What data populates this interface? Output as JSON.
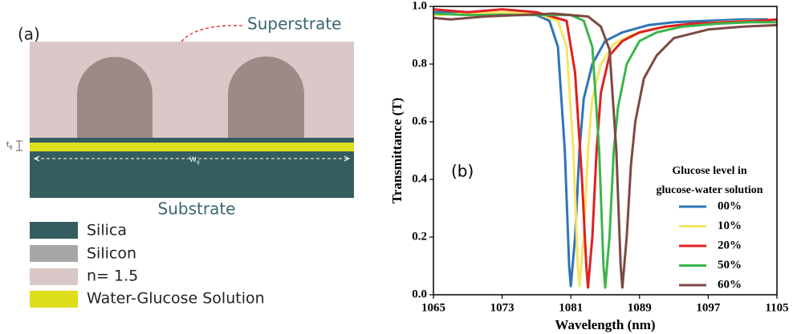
{
  "diagram": {
    "panel_label": "(a)",
    "superstrate": "Superstrate",
    "substrate": "Substrate",
    "thickness_label": {
      "main": "t",
      "sub": "g"
    },
    "width_label": {
      "main": "W",
      "sub": "g"
    },
    "legend": [
      "Silica",
      "Silicon",
      "n= 1.5",
      "Water-Glucose Solution"
    ]
  },
  "chart_data": {
    "type": "line",
    "panel_label": "(b)",
    "x_label": "Wavelength (nm)",
    "y_label": "Transmittance (T)",
    "legend_title": [
      "Glucose level in",
      "glucose-water solution"
    ],
    "xlim": [
      1065,
      1105
    ],
    "xticks": [
      1065,
      1073,
      1081,
      1089,
      1097,
      1105
    ],
    "ylim": [
      0,
      1
    ],
    "yticks": [
      {
        "value": 0,
        "label": "0.0"
      },
      0.2,
      0.4,
      0.6,
      0.8,
      {
        "value": 1,
        "label": "1.0"
      }
    ],
    "series": [
      {
        "name": "00%",
        "color": "#2e75b6",
        "x": [
          1065,
          1069,
          1073,
          1077,
          1078.5,
          1079.5,
          1080.3,
          1080.8,
          1081,
          1081.5,
          1082,
          1082.5,
          1083.5,
          1085,
          1087,
          1090,
          1093,
          1097,
          1101,
          1104
        ],
        "values": [
          0.98,
          0.98,
          0.975,
          0.97,
          0.95,
          0.86,
          0.5,
          0.1,
          0.03,
          0.2,
          0.5,
          0.68,
          0.8,
          0.88,
          0.91,
          0.935,
          0.945,
          0.95,
          0.955,
          0.955
        ]
      },
      {
        "name": "10%",
        "color": "#f5e663",
        "x": [
          1065,
          1069,
          1073,
          1077,
          1079.5,
          1080.5,
          1081.3,
          1081.8,
          1082,
          1082.5,
          1083,
          1083.5,
          1084.5,
          1086,
          1088,
          1091,
          1094,
          1098,
          1102,
          1104
        ],
        "values": [
          0.97,
          0.975,
          0.98,
          0.975,
          0.95,
          0.86,
          0.5,
          0.1,
          0.03,
          0.2,
          0.5,
          0.68,
          0.8,
          0.87,
          0.9,
          0.925,
          0.935,
          0.945,
          0.95,
          0.95
        ]
      },
      {
        "name": "20%",
        "color": "#e02020",
        "x": [
          1065,
          1069,
          1073,
          1077,
          1080.5,
          1081.5,
          1082.3,
          1082.8,
          1083,
          1083.5,
          1084,
          1084.5,
          1085.5,
          1087,
          1089,
          1092,
          1095,
          1099,
          1103,
          1105
        ],
        "values": [
          0.99,
          0.98,
          0.99,
          0.98,
          0.95,
          0.77,
          0.4,
          0.1,
          0.025,
          0.2,
          0.5,
          0.7,
          0.83,
          0.88,
          0.91,
          0.93,
          0.94,
          0.945,
          0.95,
          0.955
        ]
      },
      {
        "name": "50%",
        "color": "#3cb54a",
        "x": [
          1065,
          1069,
          1073,
          1077,
          1081,
          1082.5,
          1083.5,
          1084.3,
          1084.8,
          1085,
          1085.5,
          1086,
          1086.5,
          1087.5,
          1089,
          1091,
          1094,
          1098,
          1102,
          1105
        ],
        "values": [
          0.975,
          0.97,
          0.97,
          0.97,
          0.97,
          0.95,
          0.86,
          0.5,
          0.1,
          0.025,
          0.2,
          0.5,
          0.65,
          0.8,
          0.88,
          0.91,
          0.93,
          0.94,
          0.945,
          0.945
        ]
      },
      {
        "name": "60%",
        "color": "#7b4a44",
        "x": [
          1065,
          1067,
          1071,
          1075,
          1079,
          1083,
          1084.5,
          1085.5,
          1086.3,
          1086.8,
          1087,
          1087.5,
          1088,
          1088.5,
          1089.5,
          1091,
          1093,
          1097,
          1101,
          1105
        ],
        "values": [
          0.96,
          0.955,
          0.965,
          0.97,
          0.975,
          0.965,
          0.93,
          0.85,
          0.5,
          0.1,
          0.025,
          0.2,
          0.45,
          0.6,
          0.75,
          0.83,
          0.89,
          0.92,
          0.93,
          0.935
        ]
      }
    ]
  }
}
